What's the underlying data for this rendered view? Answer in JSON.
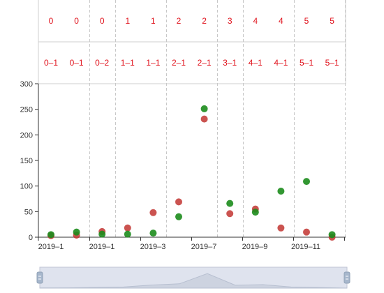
{
  "chart_data": {
    "type": "scatter",
    "row1_labels": [
      "0",
      "0",
      "0",
      "1",
      "1",
      "2",
      "2",
      "3",
      "4",
      "4",
      "5",
      "5"
    ],
    "row2_labels": [
      "0–1",
      "0–1",
      "0–2",
      "1–1",
      "1–1",
      "2–1",
      "2–1",
      "3–1",
      "4–1",
      "4–1",
      "5–1",
      "5–1"
    ],
    "y_ticks": [
      "0",
      "50",
      "100",
      "150",
      "200",
      "250",
      "300"
    ],
    "x_ticks": [
      "2019–1",
      "2019–1",
      "2019–3",
      "2019–7",
      "2019–9",
      "2019–11"
    ],
    "ylim": [
      0,
      300
    ],
    "grid": "vertical dashed separators",
    "series": [
      {
        "color": "#c23531",
        "points": [
          {
            "slot": 0.0,
            "y": 3
          },
          {
            "slot": 1.0,
            "y": 4
          },
          {
            "slot": 2.0,
            "y": 11
          },
          {
            "slot": 3.0,
            "y": 18
          },
          {
            "slot": 4.0,
            "y": 48
          },
          {
            "slot": 5.0,
            "y": 69
          },
          {
            "slot": 6.0,
            "y": 231
          },
          {
            "slot": 7.0,
            "y": 46
          },
          {
            "slot": 8.0,
            "y": 55
          },
          {
            "slot": 9.0,
            "y": 18
          },
          {
            "slot": 10.0,
            "y": 10
          },
          {
            "slot": 11.0,
            "y": 0
          }
        ]
      },
      {
        "color": "#1c8c1c",
        "points": [
          {
            "slot": 0.0,
            "y": 5
          },
          {
            "slot": 1.0,
            "y": 10
          },
          {
            "slot": 2.0,
            "y": 6
          },
          {
            "slot": 3.0,
            "y": 6
          },
          {
            "slot": 4.0,
            "y": 8
          },
          {
            "slot": 5.0,
            "y": 40
          },
          {
            "slot": 6.0,
            "y": 251
          },
          {
            "slot": 7.0,
            "y": 66
          },
          {
            "slot": 8.0,
            "y": 49
          },
          {
            "slot": 9.0,
            "y": 90
          },
          {
            "slot": 10.0,
            "y": 109
          },
          {
            "slot": 11.0,
            "y": 5
          }
        ]
      }
    ]
  },
  "datazoom": {
    "start": 0,
    "end": 1
  }
}
